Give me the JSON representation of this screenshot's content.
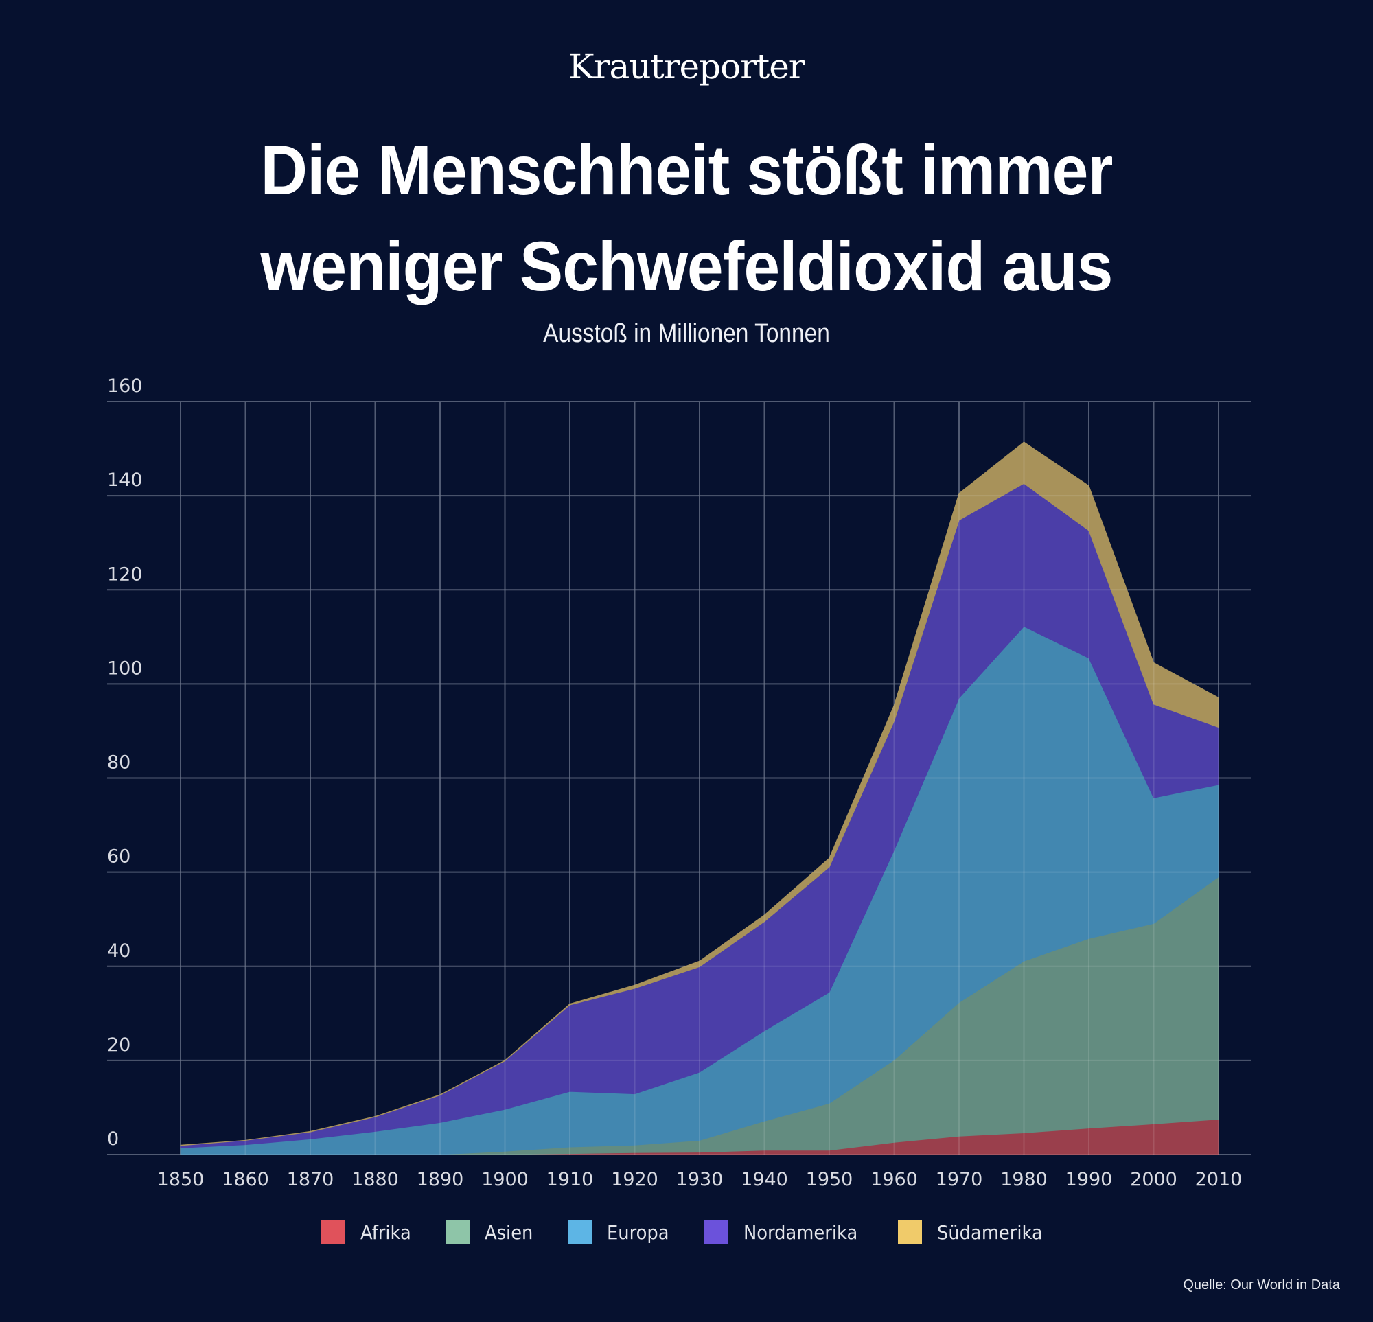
{
  "header": {
    "brand": "Krautreporter",
    "title_line1": "Die Menschheit stößt immer",
    "title_line2": "weniger Schwefeldioxid aus",
    "subtitle": "Ausstoß in Millionen Tonnen"
  },
  "footer": {
    "source": "Quelle: Our World in Data"
  },
  "chart_data": {
    "type": "area",
    "stacked": true,
    "title": "Die Menschheit stößt immer weniger Schwefeldioxid aus",
    "subtitle": "Ausstoß in Millionen Tonnen",
    "xlabel": "",
    "ylabel": "",
    "x": [
      1850,
      1860,
      1870,
      1880,
      1890,
      1900,
      1910,
      1920,
      1930,
      1940,
      1950,
      1960,
      1970,
      1980,
      1990,
      2000,
      2010
    ],
    "ylim": [
      0,
      160
    ],
    "yticks": [
      0,
      20,
      40,
      60,
      80,
      100,
      120,
      140,
      160
    ],
    "xticks": [
      1850,
      1860,
      1870,
      1880,
      1890,
      1900,
      1910,
      1920,
      1930,
      1940,
      1950,
      1960,
      1970,
      1980,
      1990,
      2000,
      2010
    ],
    "grid": true,
    "legend_position": "bottom",
    "series": [
      {
        "name": "Afrika",
        "color": "#e0525b",
        "fill": "#9a3f4c",
        "values": [
          0,
          0,
          0,
          0,
          0,
          0,
          0.2,
          0.4,
          0.5,
          0.9,
          0.9,
          2.6,
          3.9,
          4.6,
          5.6,
          6.5,
          7.5
        ]
      },
      {
        "name": "Asien",
        "color": "#8ec5a8",
        "fill": "#638c80",
        "values": [
          0,
          0,
          0,
          0,
          0,
          0.7,
          1.4,
          1.6,
          2.5,
          6.2,
          10.0,
          17.5,
          28.4,
          36.5,
          40.3,
          42.6,
          51.5
        ]
      },
      {
        "name": "Europa",
        "color": "#5db5e5",
        "fill": "#4287b0",
        "values": [
          1.4,
          2.1,
          3.3,
          4.9,
          6.8,
          8.9,
          11.8,
          10.9,
          14.5,
          19.2,
          23.6,
          44.6,
          64.7,
          71.1,
          59.6,
          26.7,
          19.6
        ]
      },
      {
        "name": "Nordamerika",
        "color": "#6b52db",
        "fill": "#4b3ea8",
        "values": [
          0.5,
          0.9,
          1.5,
          3.1,
          5.8,
          10.3,
          18.4,
          22.4,
          22.4,
          23.2,
          26.6,
          27.4,
          37.8,
          30.4,
          27.1,
          19.9,
          12.2
        ]
      },
      {
        "name": "Südamerika",
        "color": "#f0cb6a",
        "fill": "#a8925a",
        "values": [
          0.1,
          0,
          0.1,
          0.1,
          0.1,
          0.1,
          0.2,
          0.7,
          1.2,
          1.4,
          1.9,
          3.4,
          5.7,
          8.8,
          9.5,
          8.8,
          6.3
        ]
      }
    ]
  }
}
